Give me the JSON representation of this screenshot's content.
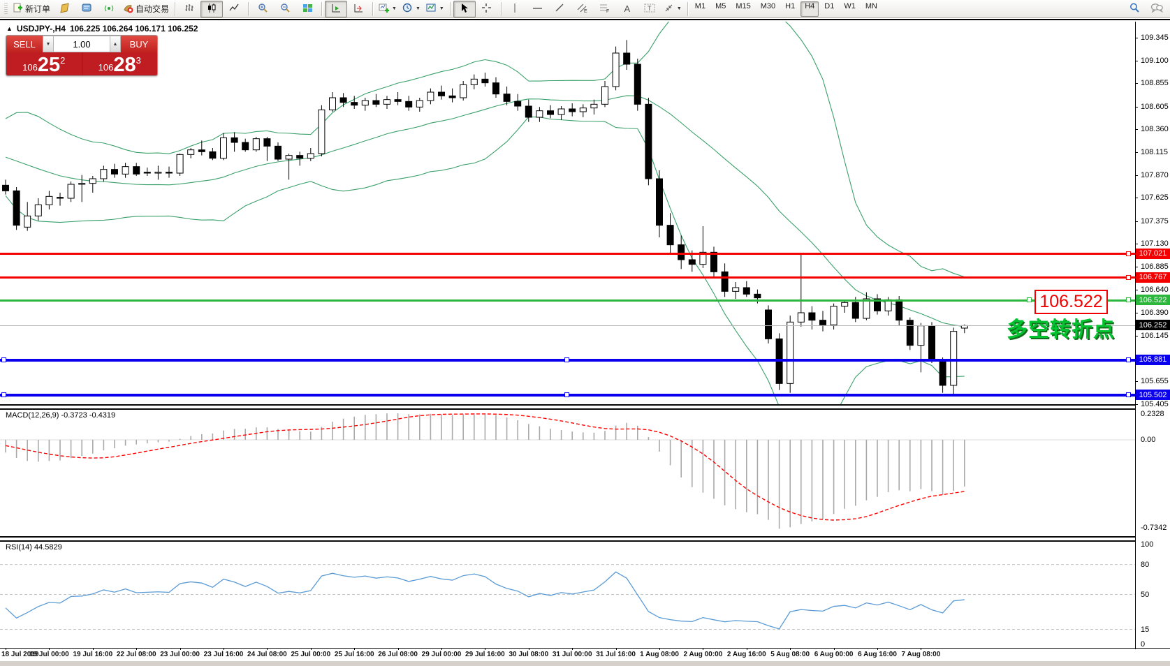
{
  "toolbar": {
    "new_order_label": "新订单",
    "auto_trading_label": "自动交易",
    "timeframes": [
      "M1",
      "M5",
      "M15",
      "M30",
      "H1",
      "H4",
      "D1",
      "W1",
      "MN"
    ],
    "active_timeframe": "H4",
    "icon_names": [
      "new-order",
      "market-watch",
      "data-window",
      "signals",
      "auto-trading",
      "bar-chart",
      "candle-chart",
      "line-chart",
      "zoom-in",
      "zoom-out",
      "tile-windows",
      "auto-scroll",
      "chart-shift",
      "new-chart",
      "periods",
      "templates",
      "cursor",
      "crosshair",
      "vertical-line",
      "horizontal-line",
      "trendline",
      "equidistant-channel",
      "fibonacci",
      "text",
      "text-label",
      "arrows",
      "search",
      "chat"
    ]
  },
  "window": {
    "collapse_arrow": "▲",
    "symbol": "USDJPY-,H4",
    "ohlc": "106.225 106.264 106.171 106.252"
  },
  "one_click": {
    "sell_label": "SELL",
    "buy_label": "BUY",
    "volume": "1.00",
    "spin_down": "▼",
    "spin_up": "▲",
    "sell": {
      "prefix": "106",
      "big": "25",
      "sup": "2"
    },
    "buy": {
      "prefix": "106",
      "big": "28",
      "sup": "3"
    }
  },
  "price_axis": {
    "ticks": [
      "109.345",
      "109.100",
      "108.855",
      "108.605",
      "108.360",
      "108.115",
      "107.870",
      "107.625",
      "107.375",
      "107.130",
      "106.885",
      "106.640",
      "106.390",
      "106.145",
      "105.655",
      "105.405"
    ]
  },
  "objects": {
    "hlines": [
      {
        "value": "107.021",
        "price": 107.021,
        "color": "#f30000",
        "thickness": 3,
        "handles": [
          1612
        ]
      },
      {
        "value": "106.767",
        "price": 106.767,
        "color": "#f30000",
        "thickness": 3,
        "handles": [
          1612
        ]
      },
      {
        "value": "106.522",
        "price": 106.522,
        "color": "#2db63c",
        "thickness": 3,
        "handles": [
          1470,
          1612
        ]
      },
      {
        "value": "105.881",
        "price": 105.881,
        "color": "#0a00ee",
        "thickness": 4,
        "handles": [
          2,
          808,
          1612
        ]
      },
      {
        "value": "105.502",
        "price": 105.502,
        "color": "#0a00ee",
        "thickness": 4,
        "handles": [
          2,
          808,
          1612
        ]
      }
    ],
    "current_price": {
      "value": "106.252",
      "price": 106.252,
      "badge_color": "#000000",
      "line_color": "#b6b6b6"
    },
    "annotation_box": "106.522",
    "annotation_text": "多空转折点"
  },
  "macd": {
    "label": "MACD(12,26,9) -0.3723 -0.4319",
    "max_label": "0.2328",
    "zero_label": "0.00",
    "min_label": "-0.7342",
    "fast": 12,
    "slow": 26,
    "signal": 9,
    "histogram_color": "#a9a9a9",
    "signal_color": "#ff0000"
  },
  "rsi": {
    "label": "RSI(14) 44.5829",
    "period": 14,
    "levels": [
      "100",
      "80",
      "50",
      "15",
      "0"
    ],
    "level_values": [
      100,
      80,
      50,
      15,
      0
    ],
    "dashed_levels": [
      80,
      50,
      15
    ],
    "line_color": "#5b9bd5"
  },
  "chart_data": {
    "type": "candlestick",
    "symbol": "USDJPY-",
    "timeframe": "H4",
    "ylim": [
      105.35,
      109.52
    ],
    "band_color": "#3aa06a",
    "x_labels": [
      "18 Jul 2019",
      "19 Jul 00:00",
      "19 Jul 16:00",
      "22 Jul 08:00",
      "23 Jul 00:00",
      "23 Jul 16:00",
      "24 Jul 08:00",
      "25 Jul 00:00",
      "25 Jul 16:00",
      "26 Jul 08:00",
      "29 Jul 00:00",
      "29 Jul 16:00",
      "30 Jul 08:00",
      "31 Jul 00:00",
      "31 Jul 16:00",
      "1 Aug 08:00",
      "2 Aug 00:00",
      "2 Aug 16:00",
      "5 Aug 08:00",
      "6 Aug 00:00",
      "6 Aug 16:00",
      "7 Aug 08:00"
    ],
    "bollinger": {
      "period": 20,
      "deviation": 2
    },
    "pre_closes": [
      108.05,
      108.15,
      108.28,
      108.38,
      108.42,
      108.35,
      108.25,
      108.18,
      108.1,
      108.02,
      108.1,
      108.16,
      108.06,
      107.95,
      107.88,
      107.95,
      107.9,
      107.84,
      107.8,
      107.76
    ],
    "candles": [
      [
        107.76,
        107.82,
        107.66,
        107.7
      ],
      [
        107.7,
        107.74,
        107.28,
        107.33
      ],
      [
        107.31,
        107.58,
        107.27,
        107.43
      ],
      [
        107.43,
        107.62,
        107.38,
        107.55
      ],
      [
        107.55,
        107.7,
        107.5,
        107.64
      ],
      [
        107.63,
        107.68,
        107.54,
        107.62
      ],
      [
        107.62,
        107.8,
        107.58,
        107.77
      ],
      [
        107.77,
        107.87,
        107.58,
        107.78
      ],
      [
        107.78,
        107.86,
        107.68,
        107.83
      ],
      [
        107.83,
        107.97,
        107.8,
        107.93
      ],
      [
        107.93,
        107.99,
        107.84,
        107.88
      ],
      [
        107.88,
        108.0,
        107.84,
        107.96
      ],
      [
        107.96,
        108.0,
        107.86,
        107.88
      ],
      [
        107.9,
        107.95,
        107.86,
        107.89
      ],
      [
        107.89,
        107.97,
        107.82,
        107.9
      ],
      [
        107.9,
        107.96,
        107.84,
        107.89
      ],
      [
        107.89,
        108.1,
        107.86,
        108.09
      ],
      [
        108.09,
        108.16,
        108.05,
        108.14
      ],
      [
        108.14,
        108.24,
        108.08,
        108.12
      ],
      [
        108.12,
        108.16,
        108.03,
        108.05
      ],
      [
        108.05,
        108.32,
        108.03,
        108.27
      ],
      [
        108.27,
        108.33,
        108.12,
        108.22
      ],
      [
        108.22,
        108.26,
        108.12,
        108.14
      ],
      [
        108.14,
        108.28,
        108.12,
        108.26
      ],
      [
        108.26,
        108.28,
        108.02,
        108.18
      ],
      [
        108.18,
        108.22,
        108.02,
        108.04
      ],
      [
        108.04,
        108.1,
        107.82,
        108.08
      ],
      [
        108.08,
        108.12,
        107.97,
        108.05
      ],
      [
        108.05,
        108.16,
        108.02,
        108.1
      ],
      [
        108.1,
        108.62,
        108.07,
        108.57
      ],
      [
        108.57,
        108.76,
        108.55,
        108.7
      ],
      [
        108.7,
        108.75,
        108.6,
        108.65
      ],
      [
        108.65,
        108.72,
        108.58,
        108.62
      ],
      [
        108.62,
        108.7,
        108.56,
        108.67
      ],
      [
        108.67,
        108.74,
        108.6,
        108.63
      ],
      [
        108.63,
        108.72,
        108.58,
        108.68
      ],
      [
        108.68,
        108.76,
        108.62,
        108.66
      ],
      [
        108.66,
        108.72,
        108.56,
        108.6
      ],
      [
        108.6,
        108.7,
        108.55,
        108.67
      ],
      [
        108.67,
        108.8,
        108.63,
        108.76
      ],
      [
        108.76,
        108.83,
        108.68,
        108.72
      ],
      [
        108.72,
        108.8,
        108.65,
        108.7
      ],
      [
        108.7,
        108.88,
        108.67,
        108.84
      ],
      [
        108.84,
        108.95,
        108.79,
        108.9
      ],
      [
        108.9,
        108.97,
        108.82,
        108.86
      ],
      [
        108.86,
        108.92,
        108.7,
        108.74
      ],
      [
        108.74,
        108.82,
        108.62,
        108.66
      ],
      [
        108.66,
        108.74,
        108.56,
        108.61
      ],
      [
        108.61,
        108.68,
        108.44,
        108.49
      ],
      [
        108.49,
        108.6,
        108.44,
        108.56
      ],
      [
        108.56,
        108.62,
        108.48,
        108.52
      ],
      [
        108.52,
        108.61,
        108.46,
        108.58
      ],
      [
        108.58,
        108.64,
        108.5,
        108.55
      ],
      [
        108.55,
        108.63,
        108.49,
        108.59
      ],
      [
        108.59,
        108.68,
        108.52,
        108.63
      ],
      [
        108.63,
        108.88,
        108.6,
        108.82
      ],
      [
        108.82,
        109.25,
        108.78,
        109.18
      ],
      [
        109.18,
        109.32,
        109.0,
        109.06
      ],
      [
        109.06,
        109.12,
        108.56,
        108.63
      ],
      [
        108.63,
        108.7,
        107.76,
        107.83
      ],
      [
        107.83,
        107.92,
        107.2,
        107.33
      ],
      [
        107.33,
        107.46,
        107.02,
        107.12
      ],
      [
        107.12,
        107.22,
        106.86,
        106.96
      ],
      [
        106.96,
        107.06,
        106.83,
        106.91
      ],
      [
        106.91,
        107.32,
        106.87,
        107.04
      ],
      [
        107.04,
        107.1,
        106.76,
        106.83
      ],
      [
        106.83,
        106.92,
        106.56,
        106.62
      ],
      [
        106.62,
        106.72,
        106.54,
        106.66
      ],
      [
        106.66,
        106.73,
        106.56,
        106.59
      ],
      [
        106.59,
        106.64,
        106.49,
        106.55
      ],
      [
        106.42,
        106.47,
        106.06,
        106.11
      ],
      [
        106.11,
        106.17,
        105.56,
        105.63
      ],
      [
        105.63,
        106.36,
        105.53,
        106.29
      ],
      [
        106.29,
        107.02,
        106.24,
        106.39
      ],
      [
        106.39,
        106.46,
        106.21,
        106.31
      ],
      [
        106.31,
        106.41,
        106.19,
        106.26
      ],
      [
        106.26,
        106.49,
        106.21,
        106.46
      ],
      [
        106.46,
        106.53,
        106.39,
        106.5
      ],
      [
        106.5,
        106.56,
        106.29,
        106.33
      ],
      [
        106.33,
        106.61,
        106.31,
        106.54
      ],
      [
        106.54,
        106.59,
        106.37,
        106.41
      ],
      [
        106.41,
        106.56,
        106.36,
        106.53
      ],
      [
        106.53,
        106.57,
        106.25,
        106.31
      ],
      [
        106.31,
        106.34,
        105.99,
        106.04
      ],
      [
        106.04,
        106.28,
        105.75,
        106.25
      ],
      [
        106.25,
        106.29,
        105.85,
        105.87
      ],
      [
        105.87,
        105.91,
        105.53,
        105.61
      ],
      [
        105.61,
        106.23,
        105.51,
        106.19
      ],
      [
        106.225,
        106.264,
        106.171,
        106.252
      ]
    ]
  }
}
